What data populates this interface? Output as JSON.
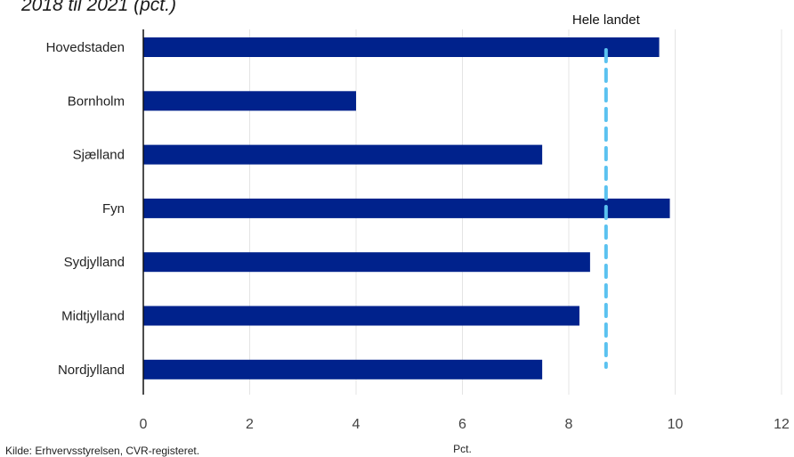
{
  "chart_data": {
    "type": "bar",
    "orientation": "horizontal",
    "title": "2018 til 2021 (pct.)",
    "categories": [
      "Hovedstaden",
      "Bornholm",
      "Sjælland",
      "Fyn",
      "Sydjylland",
      "Midtjylland",
      "Nordjylland"
    ],
    "values": [
      9.7,
      4.0,
      7.5,
      9.9,
      8.4,
      8.2,
      7.5
    ],
    "xlabel": "Pct.",
    "ylabel": "",
    "xlim": [
      0,
      12
    ],
    "xticks": [
      0,
      2,
      4,
      6,
      8,
      10,
      12
    ],
    "grid": "vertical",
    "bar_color": "#00228c",
    "reference_line": {
      "label": "Hele landet",
      "value": 8.7,
      "color": "#5bc2f0",
      "style": "dashed"
    },
    "source": "Kilde: Erhvervsstyrelsen, CVR-registeret."
  }
}
